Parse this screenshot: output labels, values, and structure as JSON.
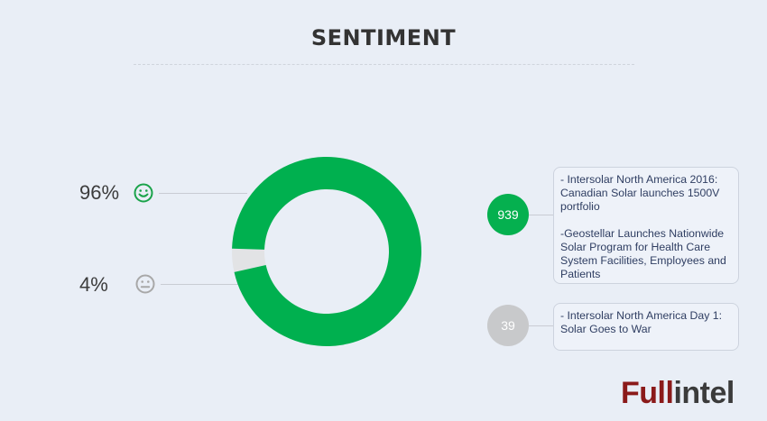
{
  "title": "SENTIMENT",
  "chart_data": {
    "type": "pie",
    "donut": true,
    "categories": [
      "positive",
      "neutral"
    ],
    "values": [
      96,
      4
    ],
    "labels": [
      "96%",
      "4%"
    ],
    "colors": [
      "#00b04f",
      "#e2e3e5"
    ]
  },
  "rows": [
    {
      "sentiment": "positive",
      "icon": "smiley-positive-icon",
      "percent_label": "96%",
      "count": "939",
      "count_color": "#05b04f",
      "icon_color": "#1aa34a",
      "headlines": [
        "- Intersolar North America 2016: Canadian Solar launches 1500V portfolio",
        "-Geostellar Launches Nationwide Solar Program for Health Care System Facilities, Employees and Patients"
      ]
    },
    {
      "sentiment": "neutral",
      "icon": "smiley-neutral-icon",
      "percent_label": "4%",
      "count": "39",
      "count_color": "#c8c9cb",
      "icon_color": "#a8a8a8",
      "headlines": [
        "- Intersolar North America Day 1: Solar Goes to War"
      ]
    }
  ],
  "logo": {
    "part1": "Full",
    "part2": "intel"
  }
}
